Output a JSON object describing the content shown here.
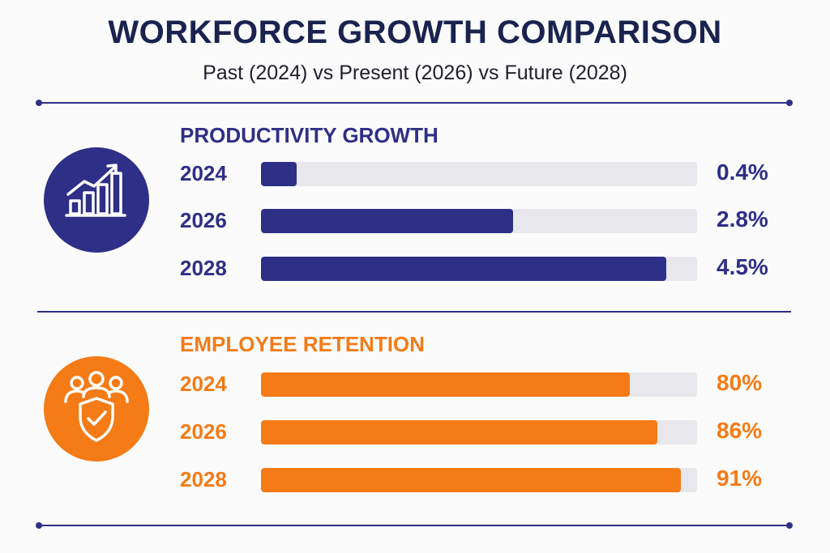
{
  "title": "WORKFORCE GROWTH COMPARISON",
  "subtitle": "Past (2024) vs Present (2026) vs Future (2028)",
  "colors": {
    "primary": "#2e2f86",
    "accent": "#f47b16",
    "track": "#e8e8ec",
    "divider": "#2e2f86"
  },
  "icons": {
    "productivity": "bar-chart-trend-up-icon",
    "retention": "people-shield-check-icon"
  },
  "chart_data": [
    {
      "type": "bar",
      "title": "PRODUCTIVITY GROWTH",
      "categories": [
        "2024",
        "2026",
        "2028"
      ],
      "values": [
        0.4,
        2.8,
        4.5
      ],
      "value_labels": [
        "0.4%",
        "2.8%",
        "4.5%"
      ],
      "xlim": [
        0,
        4.84
      ],
      "color": "#2e2f86"
    },
    {
      "type": "bar",
      "title": "EMPLOYEE RETENTION",
      "categories": [
        "2024",
        "2026",
        "2028"
      ],
      "values": [
        80,
        86,
        91
      ],
      "value_labels": [
        "80%",
        "86%",
        "91%"
      ],
      "xlim": [
        0,
        94.6
      ],
      "color": "#f47b16"
    }
  ]
}
